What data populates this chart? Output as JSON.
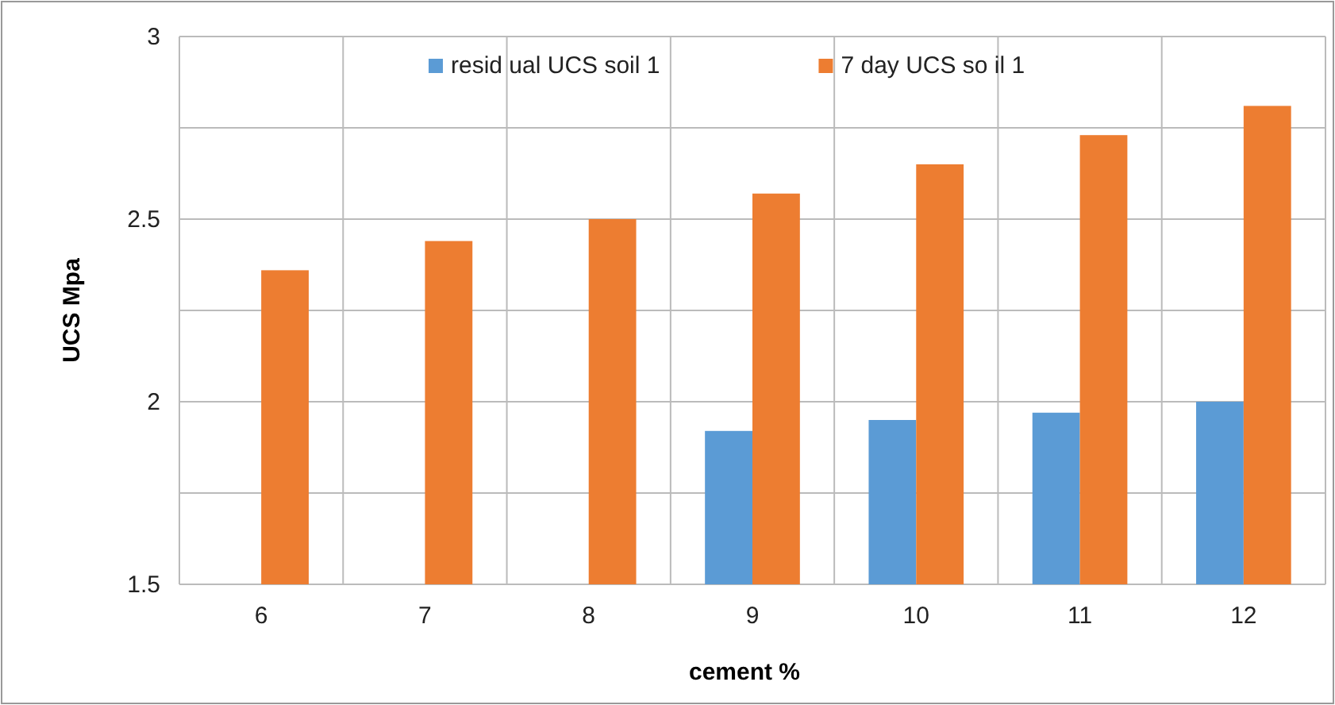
{
  "chart_data": {
    "type": "bar",
    "xlabel": "cement %",
    "ylabel": "UCS Mpa",
    "categories": [
      "6",
      "7",
      "8",
      "9",
      "10",
      "11",
      "12"
    ],
    "series": [
      {
        "name": "resid ual UCS soil 1",
        "color": "#5b9bd5",
        "values": [
          null,
          null,
          null,
          1.92,
          1.95,
          1.97,
          2.0
        ]
      },
      {
        "name": "7 day UCS so il 1",
        "color": "#ed7d31",
        "values": [
          2.36,
          2.44,
          2.5,
          2.57,
          2.65,
          2.73,
          2.81
        ]
      }
    ],
    "ylim": [
      1.5,
      3
    ],
    "yticks": [
      1.5,
      {
        "value": 1.75,
        "label": null
      },
      2,
      {
        "value": 2.25,
        "label": null
      },
      2.5,
      {
        "value": 2.75,
        "label": null
      },
      3
    ],
    "grid": true,
    "legend": "top"
  }
}
